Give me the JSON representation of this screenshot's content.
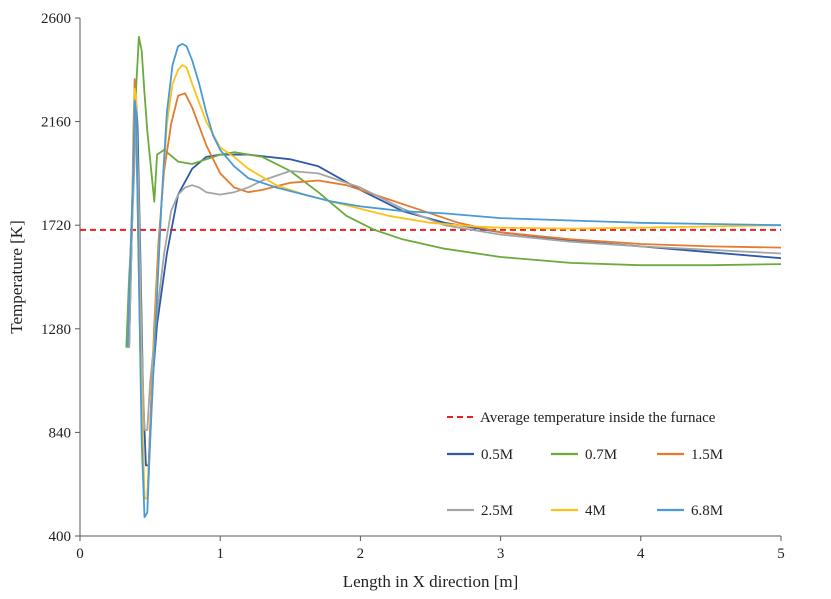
{
  "chart_data": {
    "type": "line",
    "title": "",
    "xlabel": "Length in X direction [m]",
    "ylabel": "Temperature [K]",
    "xlim": [
      0,
      5
    ],
    "ylim": [
      400,
      2600
    ],
    "xticks": [
      0,
      1,
      2,
      3,
      4,
      5
    ],
    "yticks": [
      400,
      840,
      1280,
      1720,
      2160,
      2600
    ],
    "grid": false,
    "legend_position": "bottom-right",
    "reference_line": {
      "name": "Average temperature inside the furnace",
      "y": 1700,
      "color": "#e8211f",
      "style": "dashed"
    },
    "series": [
      {
        "name": "0.5M",
        "color": "#2e5aa8",
        "x": [
          0.35,
          0.37,
          0.39,
          0.4,
          0.41,
          0.43,
          0.45,
          0.47,
          0.49,
          0.51,
          0.55,
          0.62,
          0.7,
          0.8,
          0.9,
          1.0,
          1.2,
          1.5,
          1.7,
          2.0,
          2.3,
          2.6,
          3.0,
          3.5,
          4.0,
          4.5,
          5.0
        ],
        "y": [
          1200,
          1700,
          2100,
          2240,
          2150,
          1600,
          1000,
          700,
          700,
          1000,
          1300,
          1600,
          1850,
          1960,
          2010,
          2020,
          2020,
          2000,
          1970,
          1870,
          1780,
          1730,
          1690,
          1655,
          1630,
          1605,
          1580
        ]
      },
      {
        "name": "0.7M",
        "color": "#6aab3c",
        "x": [
          0.33,
          0.35,
          0.37,
          0.38,
          0.4,
          0.42,
          0.44,
          0.46,
          0.48,
          0.5,
          0.51,
          0.52,
          0.53,
          0.55,
          0.6,
          0.7,
          0.8,
          0.9,
          1.0,
          1.1,
          1.3,
          1.5,
          1.7,
          1.9,
          2.1,
          2.3,
          2.6,
          3.0,
          3.5,
          4.0,
          4.5,
          5.0
        ],
        "y": [
          1200,
          1500,
          1700,
          1900,
          2300,
          2520,
          2460,
          2280,
          2120,
          2000,
          1940,
          1880,
          1820,
          2020,
          2040,
          1990,
          1980,
          2000,
          2020,
          2030,
          2010,
          1950,
          1860,
          1760,
          1700,
          1660,
          1620,
          1585,
          1560,
          1550,
          1550,
          1555
        ]
      },
      {
        "name": "1.5M",
        "color": "#e67a2e",
        "x": [
          0.35,
          0.37,
          0.38,
          0.39,
          0.4,
          0.42,
          0.44,
          0.46,
          0.48,
          0.5,
          0.53,
          0.56,
          0.6,
          0.65,
          0.7,
          0.75,
          0.8,
          0.9,
          1.0,
          1.1,
          1.2,
          1.3,
          1.5,
          1.7,
          1.9,
          2.1,
          2.4,
          2.7,
          3.0,
          3.5,
          4.0,
          4.5,
          5.0
        ],
        "y": [
          1200,
          1700,
          2100,
          2340,
          2200,
          1500,
          900,
          560,
          560,
          850,
          1300,
          1650,
          1950,
          2150,
          2270,
          2280,
          2220,
          2060,
          1940,
          1880,
          1860,
          1870,
          1900,
          1910,
          1890,
          1850,
          1790,
          1730,
          1690,
          1660,
          1640,
          1630,
          1625
        ]
      },
      {
        "name": "2.5M",
        "color": "#a5a5a5",
        "x": [
          0.35,
          0.37,
          0.39,
          0.4,
          0.42,
          0.44,
          0.46,
          0.48,
          0.5,
          0.55,
          0.6,
          0.65,
          0.7,
          0.75,
          0.8,
          0.85,
          0.9,
          1.0,
          1.1,
          1.2,
          1.3,
          1.5,
          1.7,
          2.0,
          2.3,
          2.6,
          3.0,
          3.5,
          4.0,
          4.5,
          5.0
        ],
        "y": [
          1200,
          1700,
          2000,
          2200,
          1800,
          1200,
          850,
          850,
          1050,
          1350,
          1600,
          1780,
          1850,
          1880,
          1890,
          1880,
          1860,
          1850,
          1860,
          1880,
          1910,
          1950,
          1940,
          1880,
          1790,
          1720,
          1680,
          1650,
          1630,
          1615,
          1600
        ]
      },
      {
        "name": "4M",
        "color": "#fcc21a",
        "x": [
          0.34,
          0.36,
          0.38,
          0.39,
          0.4,
          0.42,
          0.44,
          0.46,
          0.48,
          0.5,
          0.54,
          0.58,
          0.62,
          0.66,
          0.7,
          0.73,
          0.76,
          0.8,
          0.9,
          1.0,
          1.05,
          1.1,
          1.2,
          1.4,
          1.6,
          1.8,
          2.0,
          2.2,
          2.5,
          2.8,
          3.0,
          3.5,
          4.0,
          4.5,
          5.0
        ],
        "y": [
          1200,
          1600,
          2000,
          2300,
          2260,
          1600,
          1000,
          560,
          560,
          800,
          1350,
          1800,
          2150,
          2320,
          2380,
          2400,
          2390,
          2320,
          2160,
          2050,
          2030,
          2010,
          1960,
          1890,
          1850,
          1820,
          1790,
          1760,
          1730,
          1715,
          1710,
          1705,
          1710,
          1715,
          1720
        ]
      },
      {
        "name": "6.8M",
        "color": "#4a9ad6",
        "x": [
          0.34,
          0.36,
          0.38,
          0.39,
          0.4,
          0.42,
          0.44,
          0.46,
          0.48,
          0.5,
          0.54,
          0.58,
          0.62,
          0.66,
          0.7,
          0.73,
          0.76,
          0.8,
          0.85,
          0.9,
          0.95,
          1.0,
          1.1,
          1.2,
          1.4,
          1.6,
          1.8,
          2.0,
          2.3,
          2.6,
          3.0,
          3.5,
          4.0,
          4.5,
          5.0
        ],
        "y": [
          1200,
          1600,
          1950,
          2250,
          2200,
          1500,
          800,
          480,
          500,
          800,
          1300,
          1800,
          2200,
          2400,
          2480,
          2490,
          2480,
          2420,
          2320,
          2200,
          2100,
          2040,
          1970,
          1920,
          1880,
          1850,
          1820,
          1800,
          1780,
          1770,
          1750,
          1740,
          1730,
          1725,
          1720
        ]
      }
    ]
  }
}
